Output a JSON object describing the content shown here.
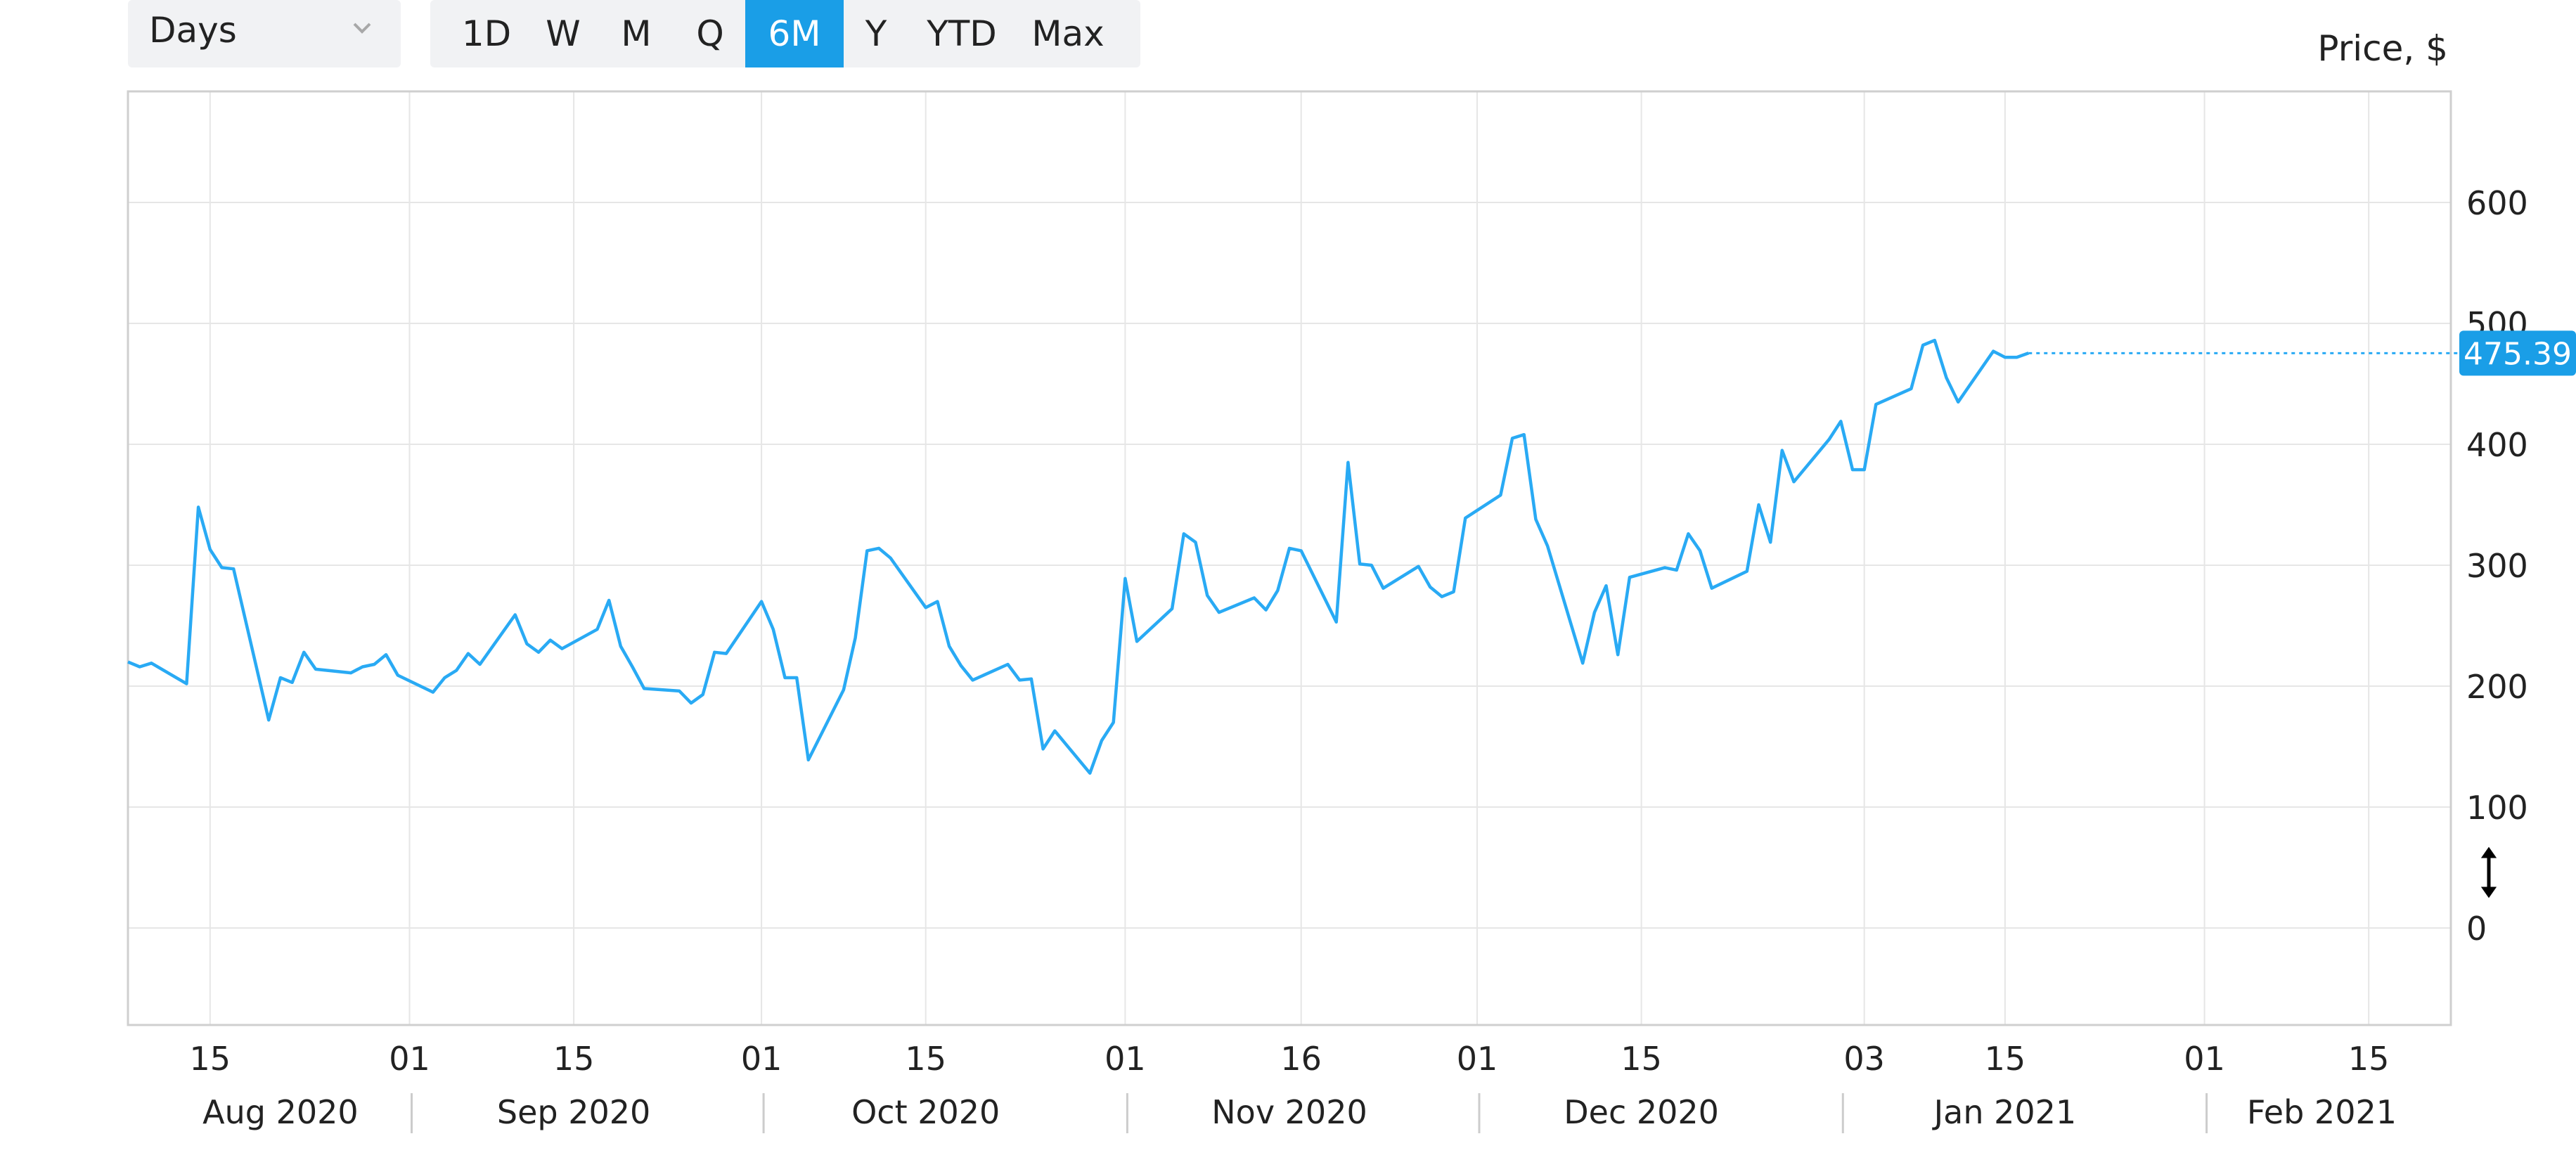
{
  "toolbar": {
    "period_value": "Days",
    "ranges": [
      {
        "label": "1D",
        "active": false
      },
      {
        "label": "W",
        "active": false
      },
      {
        "label": "M",
        "active": false
      },
      {
        "label": "Q",
        "active": false
      },
      {
        "label": "6M",
        "active": true
      },
      {
        "label": "Y",
        "active": false
      },
      {
        "label": "YTD",
        "active": false
      },
      {
        "label": "Max",
        "active": false
      }
    ]
  },
  "colors": {
    "accent": "#1a9ee7",
    "line": "#29aaf4",
    "grid": "#e6e6e6",
    "frame": "#cfcfcf",
    "toolbar_bg": "#f1f2f4"
  },
  "chart_data": {
    "type": "line",
    "ylabel": "Price, $",
    "ylim": [
      -80,
      690
    ],
    "y_ticks": [
      0,
      100,
      200,
      300,
      400,
      500,
      600
    ],
    "grid": true,
    "last_value_label": "475.39",
    "last_value": 475.39,
    "x_ticks": [
      {
        "date": "2020-08-15",
        "label": "15"
      },
      {
        "date": "2020-09-01",
        "label": "01"
      },
      {
        "date": "2020-09-15",
        "label": "15"
      },
      {
        "date": "2020-10-01",
        "label": "01"
      },
      {
        "date": "2020-10-15",
        "label": "15"
      },
      {
        "date": "2020-11-01",
        "label": "01"
      },
      {
        "date": "2020-11-16",
        "label": "16"
      },
      {
        "date": "2020-12-01",
        "label": "01"
      },
      {
        "date": "2020-12-15",
        "label": "15"
      },
      {
        "date": "2021-01-03",
        "label": "03"
      },
      {
        "date": "2021-01-15",
        "label": "15"
      },
      {
        "date": "2021-02-01",
        "label": "01"
      },
      {
        "date": "2021-02-15",
        "label": "15"
      }
    ],
    "month_labels": [
      {
        "label": "Aug 2020",
        "date": "2020-08-21"
      },
      {
        "label": "Sep 2020",
        "date": "2020-09-15"
      },
      {
        "label": "Oct 2020",
        "date": "2020-10-15"
      },
      {
        "label": "Nov 2020",
        "date": "2020-11-15"
      },
      {
        "label": "Dec 2020",
        "date": "2020-12-15"
      },
      {
        "label": "Jan 2021",
        "date": "2021-01-15"
      },
      {
        "label": "Feb 2021",
        "date": "2021-02-11"
      }
    ],
    "month_separators": [
      "2020-09-01",
      "2020-10-01",
      "2020-11-01",
      "2020-12-01",
      "2021-01-01",
      "2021-02-01"
    ],
    "x_range": [
      "2020-08-08",
      "2021-02-22"
    ],
    "series": [
      {
        "points": [
          [
            "2020-08-08",
            220
          ],
          [
            "2020-08-09",
            216
          ],
          [
            "2020-08-10",
            219
          ],
          [
            "2020-08-13",
            202
          ],
          [
            "2020-08-14",
            348
          ],
          [
            "2020-08-15",
            313
          ],
          [
            "2020-08-16",
            298
          ],
          [
            "2020-08-17",
            297
          ],
          [
            "2020-08-20",
            172
          ],
          [
            "2020-08-21",
            207
          ],
          [
            "2020-08-22",
            203
          ],
          [
            "2020-08-23",
            228
          ],
          [
            "2020-08-24",
            214
          ],
          [
            "2020-08-27",
            211
          ],
          [
            "2020-08-28",
            216
          ],
          [
            "2020-08-29",
            218
          ],
          [
            "2020-08-30",
            226
          ],
          [
            "2020-08-31",
            209
          ],
          [
            "2020-09-03",
            195
          ],
          [
            "2020-09-04",
            207
          ],
          [
            "2020-09-05",
            213
          ],
          [
            "2020-09-06",
            227
          ],
          [
            "2020-09-07",
            218
          ],
          [
            "2020-09-10",
            259
          ],
          [
            "2020-09-11",
            235
          ],
          [
            "2020-09-12",
            228
          ],
          [
            "2020-09-13",
            238
          ],
          [
            "2020-09-14",
            231
          ],
          [
            "2020-09-17",
            247
          ],
          [
            "2020-09-18",
            271
          ],
          [
            "2020-09-19",
            233
          ],
          [
            "2020-09-20",
            216
          ],
          [
            "2020-09-21",
            198
          ],
          [
            "2020-09-24",
            196
          ],
          [
            "2020-09-25",
            186
          ],
          [
            "2020-09-26",
            193
          ],
          [
            "2020-09-27",
            228
          ],
          [
            "2020-09-28",
            227
          ],
          [
            "2020-10-01",
            270
          ],
          [
            "2020-10-02",
            247
          ],
          [
            "2020-10-03",
            207
          ],
          [
            "2020-10-04",
            207
          ],
          [
            "2020-10-05",
            139
          ],
          [
            "2020-10-08",
            197
          ],
          [
            "2020-10-09",
            240
          ],
          [
            "2020-10-10",
            312
          ],
          [
            "2020-10-11",
            314
          ],
          [
            "2020-10-12",
            306
          ],
          [
            "2020-10-15",
            265
          ],
          [
            "2020-10-16",
            270
          ],
          [
            "2020-10-17",
            233
          ],
          [
            "2020-10-18",
            217
          ],
          [
            "2020-10-19",
            205
          ],
          [
            "2020-10-22",
            218
          ],
          [
            "2020-10-23",
            205
          ],
          [
            "2020-10-24",
            206
          ],
          [
            "2020-10-25",
            148
          ],
          [
            "2020-10-26",
            163
          ],
          [
            "2020-10-29",
            128
          ],
          [
            "2020-10-30",
            155
          ],
          [
            "2020-10-31",
            170
          ],
          [
            "2020-11-01",
            289
          ],
          [
            "2020-11-02",
            237
          ],
          [
            "2020-11-05",
            264
          ],
          [
            "2020-11-06",
            326
          ],
          [
            "2020-11-07",
            319
          ],
          [
            "2020-11-08",
            275
          ],
          [
            "2020-11-09",
            261
          ],
          [
            "2020-11-12",
            273
          ],
          [
            "2020-11-13",
            263
          ],
          [
            "2020-11-14",
            279
          ],
          [
            "2020-11-15",
            314
          ],
          [
            "2020-11-16",
            312
          ],
          [
            "2020-11-19",
            253
          ],
          [
            "2020-11-20",
            385
          ],
          [
            "2020-11-21",
            301
          ],
          [
            "2020-11-22",
            300
          ],
          [
            "2020-11-23",
            281
          ],
          [
            "2020-11-26",
            299
          ],
          [
            "2020-11-27",
            282
          ],
          [
            "2020-11-28",
            274
          ],
          [
            "2020-11-29",
            278
          ],
          [
            "2020-11-30",
            339
          ],
          [
            "2020-12-03",
            358
          ],
          [
            "2020-12-04",
            405
          ],
          [
            "2020-12-05",
            408
          ],
          [
            "2020-12-06",
            338
          ],
          [
            "2020-12-07",
            316
          ],
          [
            "2020-12-10",
            219
          ],
          [
            "2020-12-11",
            261
          ],
          [
            "2020-12-12",
            283
          ],
          [
            "2020-12-13",
            226
          ],
          [
            "2020-12-14",
            290
          ],
          [
            "2020-12-17",
            298
          ],
          [
            "2020-12-18",
            296
          ],
          [
            "2020-12-19",
            326
          ],
          [
            "2020-12-20",
            312
          ],
          [
            "2020-12-21",
            281
          ],
          [
            "2020-12-24",
            295
          ],
          [
            "2020-12-25",
            350
          ],
          [
            "2020-12-26",
            319
          ],
          [
            "2020-12-27",
            395
          ],
          [
            "2020-12-28",
            369
          ],
          [
            "2020-12-31",
            404
          ],
          [
            "2021-01-01",
            419
          ],
          [
            "2021-01-02",
            379
          ],
          [
            "2021-01-03",
            379
          ],
          [
            "2021-01-04",
            433
          ],
          [
            "2021-01-07",
            446
          ],
          [
            "2021-01-08",
            482
          ],
          [
            "2021-01-09",
            486
          ],
          [
            "2021-01-10",
            455
          ],
          [
            "2021-01-11",
            435
          ],
          [
            "2021-01-14",
            477
          ],
          [
            "2021-01-15",
            472
          ],
          [
            "2021-01-16",
            472
          ],
          [
            "2021-01-17",
            475.39
          ]
        ]
      }
    ]
  }
}
